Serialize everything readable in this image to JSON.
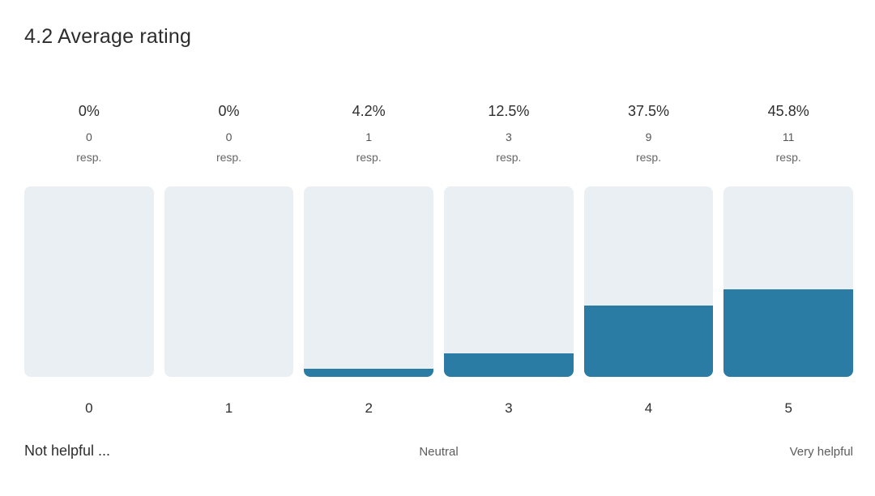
{
  "title": "4.2 Average rating",
  "colors": {
    "bar_fill": "#2a7ca5",
    "bar_bg": "#e9eff3"
  },
  "footer": {
    "left": "Not helpful ...",
    "center": "Neutral",
    "right": "Very helpful"
  },
  "chart_data": {
    "type": "bar",
    "title": "4.2 Average rating",
    "average_rating": 4.2,
    "categories": [
      "0",
      "1",
      "2",
      "3",
      "4",
      "5"
    ],
    "series": [
      {
        "name": "percent",
        "values": [
          0,
          0,
          4.2,
          12.5,
          37.5,
          45.8
        ]
      },
      {
        "name": "responses",
        "values": [
          0,
          0,
          1,
          3,
          9,
          11
        ]
      }
    ],
    "ylim": [
      0,
      100
    ],
    "grid": false,
    "legend": "none",
    "scale_annotations": {
      "left": "Not helpful ...",
      "center": "Neutral",
      "right": "Very helpful"
    },
    "columns": [
      {
        "percent": 0,
        "percent_label": "0%",
        "count": "0",
        "resp_label": "resp.",
        "rating": "0"
      },
      {
        "percent": 0,
        "percent_label": "0%",
        "count": "0",
        "resp_label": "resp.",
        "rating": "1"
      },
      {
        "percent": 4.2,
        "percent_label": "4.2%",
        "count": "1",
        "resp_label": "resp.",
        "rating": "2"
      },
      {
        "percent": 12.5,
        "percent_label": "12.5%",
        "count": "3",
        "resp_label": "resp.",
        "rating": "3"
      },
      {
        "percent": 37.5,
        "percent_label": "37.5%",
        "count": "9",
        "resp_label": "resp.",
        "rating": "4"
      },
      {
        "percent": 45.8,
        "percent_label": "45.8%",
        "count": "11",
        "resp_label": "resp.",
        "rating": "5"
      }
    ]
  }
}
